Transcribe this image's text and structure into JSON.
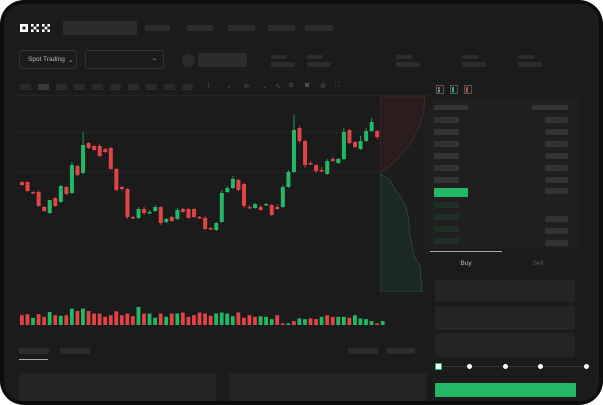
{
  "brand": {
    "logo_text": "OKX"
  },
  "toolbar": {
    "market_dropdown": "Spot Trading",
    "chevron": "⌄"
  },
  "trade_panel": {
    "tabs": [
      {
        "label": "Buy",
        "active": true
      },
      {
        "label": "Sell",
        "active": false
      }
    ],
    "slider_percent": 0
  },
  "colors": {
    "up": "#22b866",
    "down": "#e04545",
    "background": "#1b1b1b",
    "accent": "#22b866"
  },
  "chart_data": {
    "type": "candlestick",
    "candles": [
      [
        58,
        55,
        59,
        54
      ],
      [
        58,
        49,
        59,
        48
      ],
      [
        48,
        47,
        49,
        46
      ],
      [
        48,
        34,
        50,
        33
      ],
      [
        33,
        29,
        34,
        28
      ],
      [
        27,
        40,
        28,
        26
      ],
      [
        42,
        34,
        43,
        33
      ],
      [
        38,
        54,
        55,
        37
      ],
      [
        53,
        46,
        54,
        45
      ],
      [
        47,
        75,
        78,
        46
      ],
      [
        74,
        65,
        75,
        64
      ],
      [
        67,
        95,
        108,
        66
      ],
      [
        97,
        92,
        98,
        91
      ],
      [
        94,
        90,
        95,
        89
      ],
      [
        94,
        84,
        96,
        83
      ],
      [
        91,
        88,
        92,
        87
      ],
      [
        92,
        71,
        93,
        70
      ],
      [
        71,
        50,
        72,
        49
      ],
      [
        53,
        51,
        54,
        49
      ],
      [
        51,
        23,
        52,
        21
      ],
      [
        23,
        22,
        24,
        21
      ],
      [
        22,
        31,
        33,
        21
      ],
      [
        31,
        27,
        33,
        25
      ],
      [
        27,
        28,
        30,
        26
      ],
      [
        29,
        33,
        35,
        28
      ],
      [
        33,
        17,
        34,
        15
      ],
      [
        18,
        21,
        22,
        17
      ],
      [
        23,
        19,
        24,
        18
      ],
      [
        21,
        30,
        32,
        20
      ],
      [
        31,
        28,
        32,
        27
      ],
      [
        31,
        22,
        32,
        21
      ],
      [
        31,
        23,
        32,
        22
      ],
      [
        23,
        22,
        24,
        21
      ],
      [
        22,
        11,
        24,
        10
      ],
      [
        12,
        11,
        13,
        10
      ],
      [
        10,
        17,
        18,
        9
      ],
      [
        18,
        47,
        50,
        17
      ],
      [
        48,
        52,
        54,
        47
      ],
      [
        52,
        61,
        64,
        51
      ],
      [
        60,
        50,
        61,
        49
      ],
      [
        56,
        34,
        57,
        32
      ],
      [
        33,
        32,
        35,
        31
      ],
      [
        32,
        36,
        37,
        31
      ],
      [
        33,
        30,
        35,
        29
      ],
      [
        35,
        36,
        37,
        34
      ],
      [
        35,
        25,
        36,
        24
      ],
      [
        33,
        31,
        36,
        30
      ],
      [
        33,
        53,
        55,
        32
      ],
      [
        53,
        68,
        70,
        52
      ],
      [
        68,
        110,
        125,
        67
      ],
      [
        112,
        99,
        114,
        97
      ],
      [
        99,
        75,
        100,
        72
      ],
      [
        77,
        76,
        79,
        75
      ],
      [
        75,
        69,
        76,
        67
      ],
      [
        70,
        69,
        73,
        68
      ],
      [
        66,
        79,
        81,
        65
      ],
      [
        81,
        79,
        83,
        78
      ],
      [
        77,
        81,
        82,
        76
      ],
      [
        81,
        108,
        112,
        80
      ],
      [
        110,
        97,
        111,
        96
      ],
      [
        98,
        93,
        99,
        92
      ],
      [
        91,
        99,
        104,
        90
      ],
      [
        99,
        109,
        112,
        98
      ],
      [
        109,
        118,
        122,
        108
      ],
      [
        109,
        103,
        110,
        101
      ],
      [
        101,
        107,
        113,
        100
      ]
    ],
    "volumes": [
      30,
      33,
      22,
      33,
      25,
      40,
      30,
      28,
      30,
      50,
      43,
      50,
      43,
      35,
      35,
      25,
      30,
      42,
      30,
      35,
      27,
      55,
      35,
      35,
      22,
      35,
      25,
      35,
      35,
      38,
      25,
      30,
      38,
      35,
      28,
      35,
      38,
      35,
      27,
      38,
      22,
      30,
      25,
      27,
      25,
      18,
      30,
      5,
      5,
      12,
      20,
      18,
      20,
      18,
      25,
      30,
      25,
      25,
      25,
      22,
      30,
      20,
      18,
      12,
      5,
      12
    ],
    "volume_up": [
      0,
      0,
      1,
      0,
      0,
      1,
      0,
      1,
      0,
      1,
      0,
      1,
      0,
      0,
      0,
      0,
      0,
      0,
      0,
      0,
      0,
      1,
      0,
      1,
      1,
      0,
      1,
      0,
      1,
      0,
      0,
      0,
      0,
      0,
      0,
      1,
      1,
      1,
      1,
      0,
      0,
      0,
      0,
      1,
      1,
      1,
      0,
      0,
      1,
      0,
      1,
      1,
      0,
      0,
      1,
      0,
      0,
      1,
      1,
      0,
      1,
      1,
      1,
      1,
      0,
      1
    ]
  }
}
